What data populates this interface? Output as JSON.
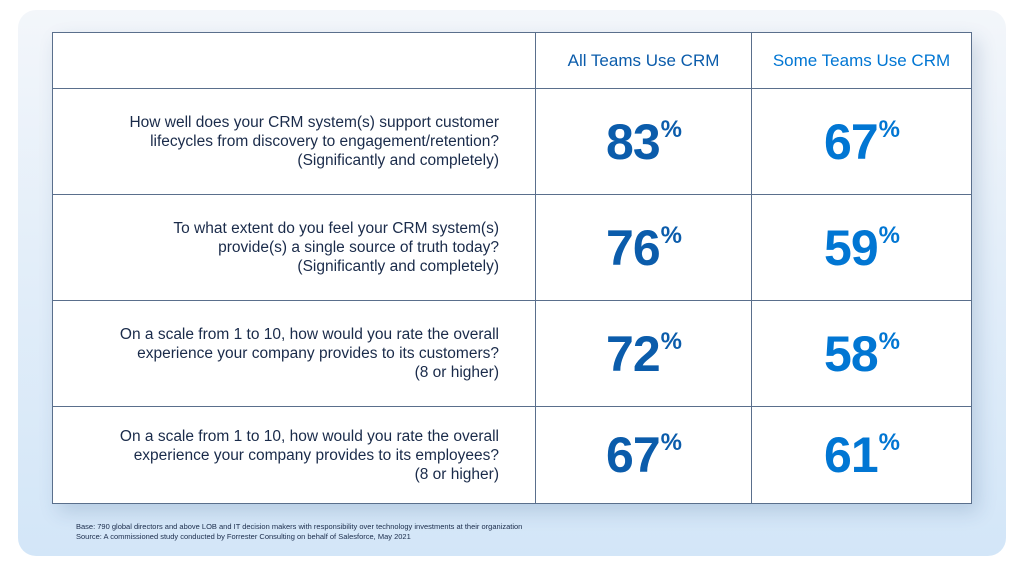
{
  "columns": [
    "All Teams Use CRM",
    "Some Teams Use CRM"
  ],
  "rows": [
    {
      "question": [
        "How well does your CRM system(s) support customer",
        "lifecycles from discovery to engagement/retention?",
        "(Significantly and completely)"
      ],
      "all": "83",
      "some": "67"
    },
    {
      "question": [
        "To what extent do you feel your CRM system(s)",
        "provide(s) a single source of truth today?",
        "(Significantly and completely)"
      ],
      "all": "76",
      "some": "59"
    },
    {
      "question": [
        "On a scale from 1 to 10, how would you rate the overall",
        "experience your company provides to its customers?",
        "(8 or higher)"
      ],
      "all": "72",
      "some": "58"
    },
    {
      "question": [
        "On a scale from 1 to 10, how would you rate the overall",
        "experience your company provides to its employees?",
        "(8 or higher)"
      ],
      "all": "67",
      "some": "61"
    }
  ],
  "percent_sign": "%",
  "footnote": {
    "base": "Base: 790 global directors and above LOB and IT decision makers with responsibility over technology investments at their organization",
    "source": "Source: A commissioned study conducted by Forrester Consulting on behalf of Salesforce, May 2021"
  },
  "colors": {
    "all_teams": "#0b5cab",
    "some_teams": "#0176d3"
  }
}
